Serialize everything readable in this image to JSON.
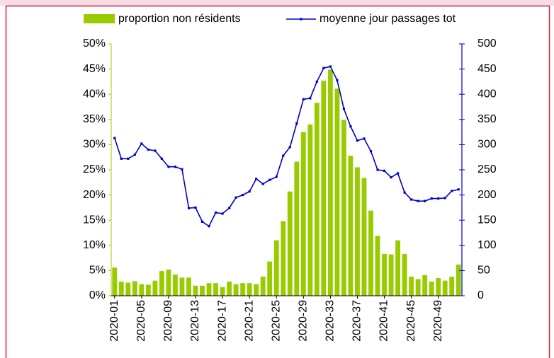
{
  "chart_data": {
    "type": "combo",
    "categories": [
      "2020-01",
      null,
      null,
      null,
      "2020-05",
      null,
      null,
      null,
      "2020-09",
      null,
      null,
      null,
      "2020-13",
      null,
      null,
      null,
      "2020-17",
      null,
      null,
      null,
      "2020-21",
      null,
      null,
      null,
      "2020-25",
      null,
      null,
      null,
      "2020-29",
      null,
      null,
      null,
      "2020-33",
      null,
      null,
      null,
      "2020-37",
      null,
      null,
      null,
      "2020-41",
      null,
      null,
      null,
      "2020-45",
      null,
      null,
      null,
      "2020-49",
      null,
      null,
      null
    ],
    "series": [
      {
        "name": "proportion non résidents",
        "type": "bar",
        "color": "#99cc00",
        "axis": "y",
        "values": [
          5.6,
          2.8,
          2.6,
          2.9,
          2.3,
          2.2,
          3.0,
          4.9,
          5.2,
          4.2,
          3.6,
          3.6,
          2.0,
          2.0,
          2.5,
          2.5,
          1.7,
          2.8,
          2.3,
          2.5,
          2.5,
          2.3,
          3.8,
          6.8,
          11.0,
          14.8,
          20.7,
          26.6,
          32.5,
          34.0,
          38.3,
          42.7,
          44.9,
          41.1,
          34.9,
          27.8,
          25.5,
          23.4,
          16.9,
          11.9,
          8.3,
          8.2,
          11.0,
          8.3,
          3.8,
          3.3,
          4.1,
          2.8,
          3.5,
          3.0,
          3.8,
          6.2
        ]
      },
      {
        "name": "moyenne jour passages tot",
        "type": "line",
        "color": "#0000cc",
        "axis": "y2",
        "values": [
          313,
          272,
          272,
          280,
          302,
          290,
          288,
          272,
          256,
          256,
          251,
          174,
          175,
          147,
          138,
          165,
          163,
          174,
          195,
          200,
          207,
          232,
          222,
          230,
          236,
          278,
          295,
          342,
          390,
          392,
          425,
          452,
          455,
          428,
          371,
          336,
          308,
          312,
          287,
          250,
          248,
          235,
          243,
          205,
          191,
          188,
          188,
          193,
          193,
          194,
          208,
          211
        ]
      }
    ],
    "ylim": [
      0,
      50
    ],
    "yticks": [
      {
        "value": 0,
        "label": "0%"
      },
      {
        "value": 5,
        "label": "5%"
      },
      {
        "value": 10,
        "label": "10%"
      },
      {
        "value": 15,
        "label": "15%"
      },
      {
        "value": 20,
        "label": "20%"
      },
      {
        "value": 25,
        "label": "25%"
      },
      {
        "value": 30,
        "label": "30%"
      },
      {
        "value": 35,
        "label": "35%"
      },
      {
        "value": 40,
        "label": "40%"
      },
      {
        "value": 45,
        "label": "45%"
      },
      {
        "value": 50,
        "label": "50%"
      }
    ],
    "y2lim": [
      0,
      500
    ],
    "y2ticks": [
      0,
      50,
      100,
      150,
      200,
      250,
      300,
      350,
      400,
      450,
      500
    ],
    "legend": "top"
  }
}
